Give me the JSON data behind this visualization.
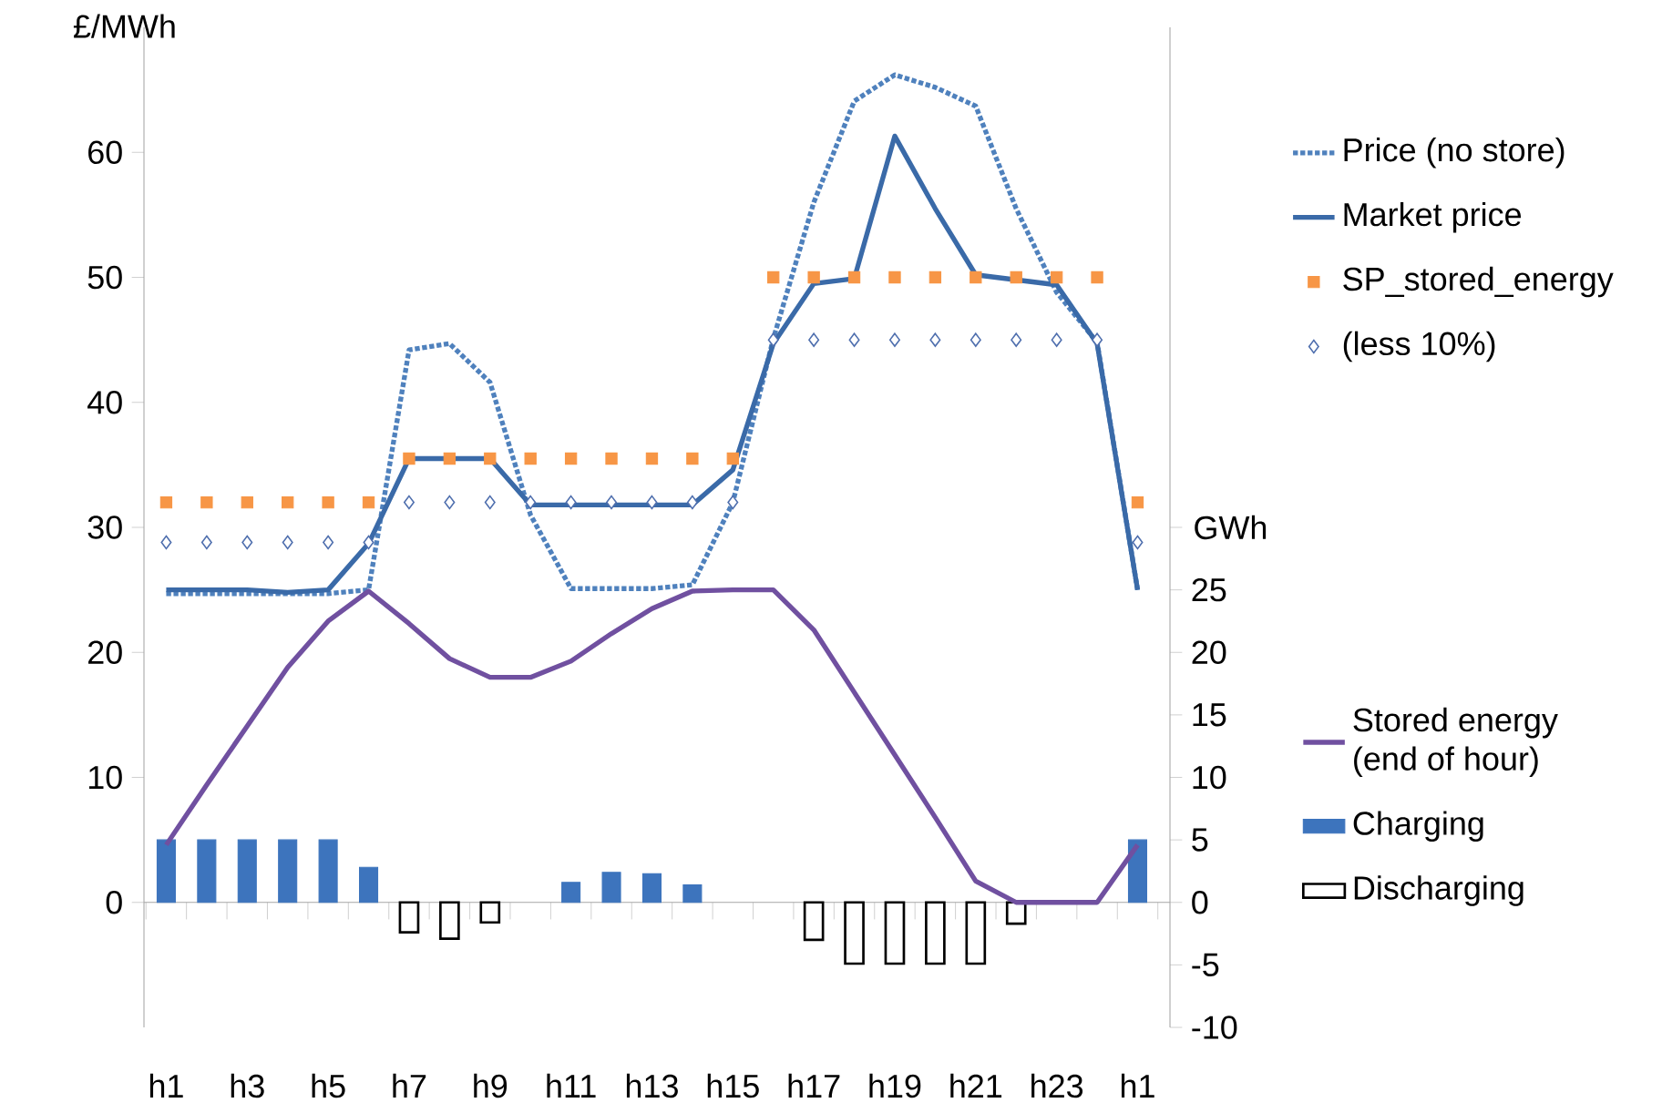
{
  "chart_data": {
    "type": "line",
    "ylabel": "£/MWh",
    "y2label": "GWh",
    "categories": [
      "h1",
      null,
      "h3",
      null,
      "h5",
      null,
      "h7",
      null,
      "h9",
      null,
      "h11",
      null,
      "h13",
      null,
      "h15",
      null,
      "h17",
      null,
      "h19",
      null,
      "h21",
      null,
      "h23",
      null,
      "h1"
    ],
    "ylim": [
      -10,
      70
    ],
    "yticks": [
      0,
      10,
      20,
      30,
      40,
      50,
      60
    ],
    "y2lim": [
      -10,
      70
    ],
    "y2ticks": [
      -10,
      -5,
      0,
      5,
      10,
      15,
      20,
      25,
      {
        "value": 30,
        "label": null
      }
    ],
    "legend": "right",
    "series": [
      {
        "name": "Price (no store)",
        "type": "line",
        "color": "#4f81bd",
        "line_style": "dotted",
        "marker": "none",
        "values": [
          24.7,
          24.7,
          24.7,
          24.7,
          24.7,
          25,
          44.2,
          44.7,
          41.6,
          31,
          25.1,
          25.1,
          25.1,
          25.4,
          32,
          45.1,
          56,
          64.1,
          66.2,
          65.2,
          63.7,
          55.5,
          48.8,
          44.8,
          25
        ]
      },
      {
        "name": "Market price",
        "type": "line",
        "color": "#3a6aa8",
        "line_style": "solid",
        "marker": "none",
        "values": [
          25,
          25,
          25,
          24.8,
          25,
          28.7,
          35.5,
          35.5,
          35.5,
          31.8,
          31.8,
          31.8,
          31.8,
          31.8,
          34.6,
          44.7,
          49.5,
          49.9,
          61.3,
          55.5,
          50.2,
          49.8,
          49.4,
          44.7,
          25
        ]
      },
      {
        "name": "SP_stored_energy",
        "type": "scatter",
        "color": "#f79646",
        "marker": "square",
        "values": [
          32,
          32,
          32,
          32,
          32,
          32,
          35.5,
          35.5,
          35.5,
          35.5,
          35.5,
          35.5,
          35.5,
          35.5,
          35.5,
          50,
          50,
          50,
          50,
          50,
          50,
          50,
          50,
          50,
          32
        ]
      },
      {
        "name": "(less 10%)",
        "type": "scatter",
        "color": "#4f6fae",
        "marker": "diamond",
        "values": [
          28.8,
          28.8,
          28.8,
          28.8,
          28.8,
          28.8,
          32,
          32,
          32,
          32,
          32,
          32,
          32,
          32,
          32,
          45,
          45,
          45,
          45,
          45,
          45,
          45,
          45,
          45,
          28.8
        ]
      },
      {
        "name": "Stored energy (end of hour)",
        "type": "line",
        "axis": "y2",
        "color": "#7050a0",
        "line_style": "solid",
        "marker": "none",
        "values": [
          4.6,
          9.4,
          14.1,
          18.8,
          22.5,
          24.9,
          22.3,
          19.5,
          18,
          18,
          19.3,
          21.5,
          23.5,
          24.9,
          25,
          25,
          21.8,
          16.8,
          11.8,
          6.8,
          1.7,
          0,
          0,
          0,
          4.6
        ]
      },
      {
        "name": "Charging",
        "type": "bar",
        "axis": "y2",
        "color": "#3d74bd",
        "values": [
          5,
          5,
          5,
          5,
          5,
          2.8,
          null,
          null,
          null,
          null,
          1.6,
          2.4,
          2.3,
          1.4,
          null,
          null,
          null,
          null,
          null,
          null,
          null,
          null,
          null,
          null,
          5
        ]
      },
      {
        "name": "Discharging",
        "type": "bar",
        "axis": "y2",
        "color": "#ffffff",
        "values": [
          null,
          null,
          null,
          null,
          null,
          null,
          -2.4,
          -2.9,
          -1.6,
          null,
          null,
          null,
          null,
          null,
          null,
          null,
          -3,
          -4.9,
          -4.9,
          -4.9,
          -4.9,
          -1.7,
          null,
          null,
          null
        ]
      }
    ]
  }
}
